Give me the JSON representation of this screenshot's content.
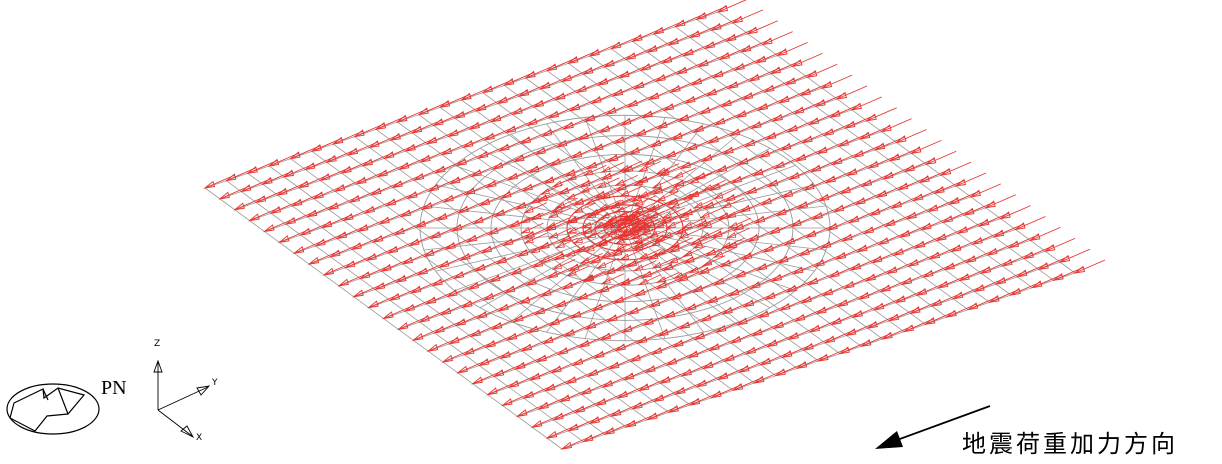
{
  "figure": {
    "plate_grid_color": "#9a9a9a",
    "load_arrow_color": "#e8332f",
    "icon_name": "view-cube-icon"
  },
  "triad": {
    "label": "PN",
    "axes": {
      "z": "Z",
      "y": "Y",
      "x": "X"
    }
  },
  "caption": {
    "text": "地震荷重加力方向",
    "icon_name": "direction-arrow-icon"
  }
}
